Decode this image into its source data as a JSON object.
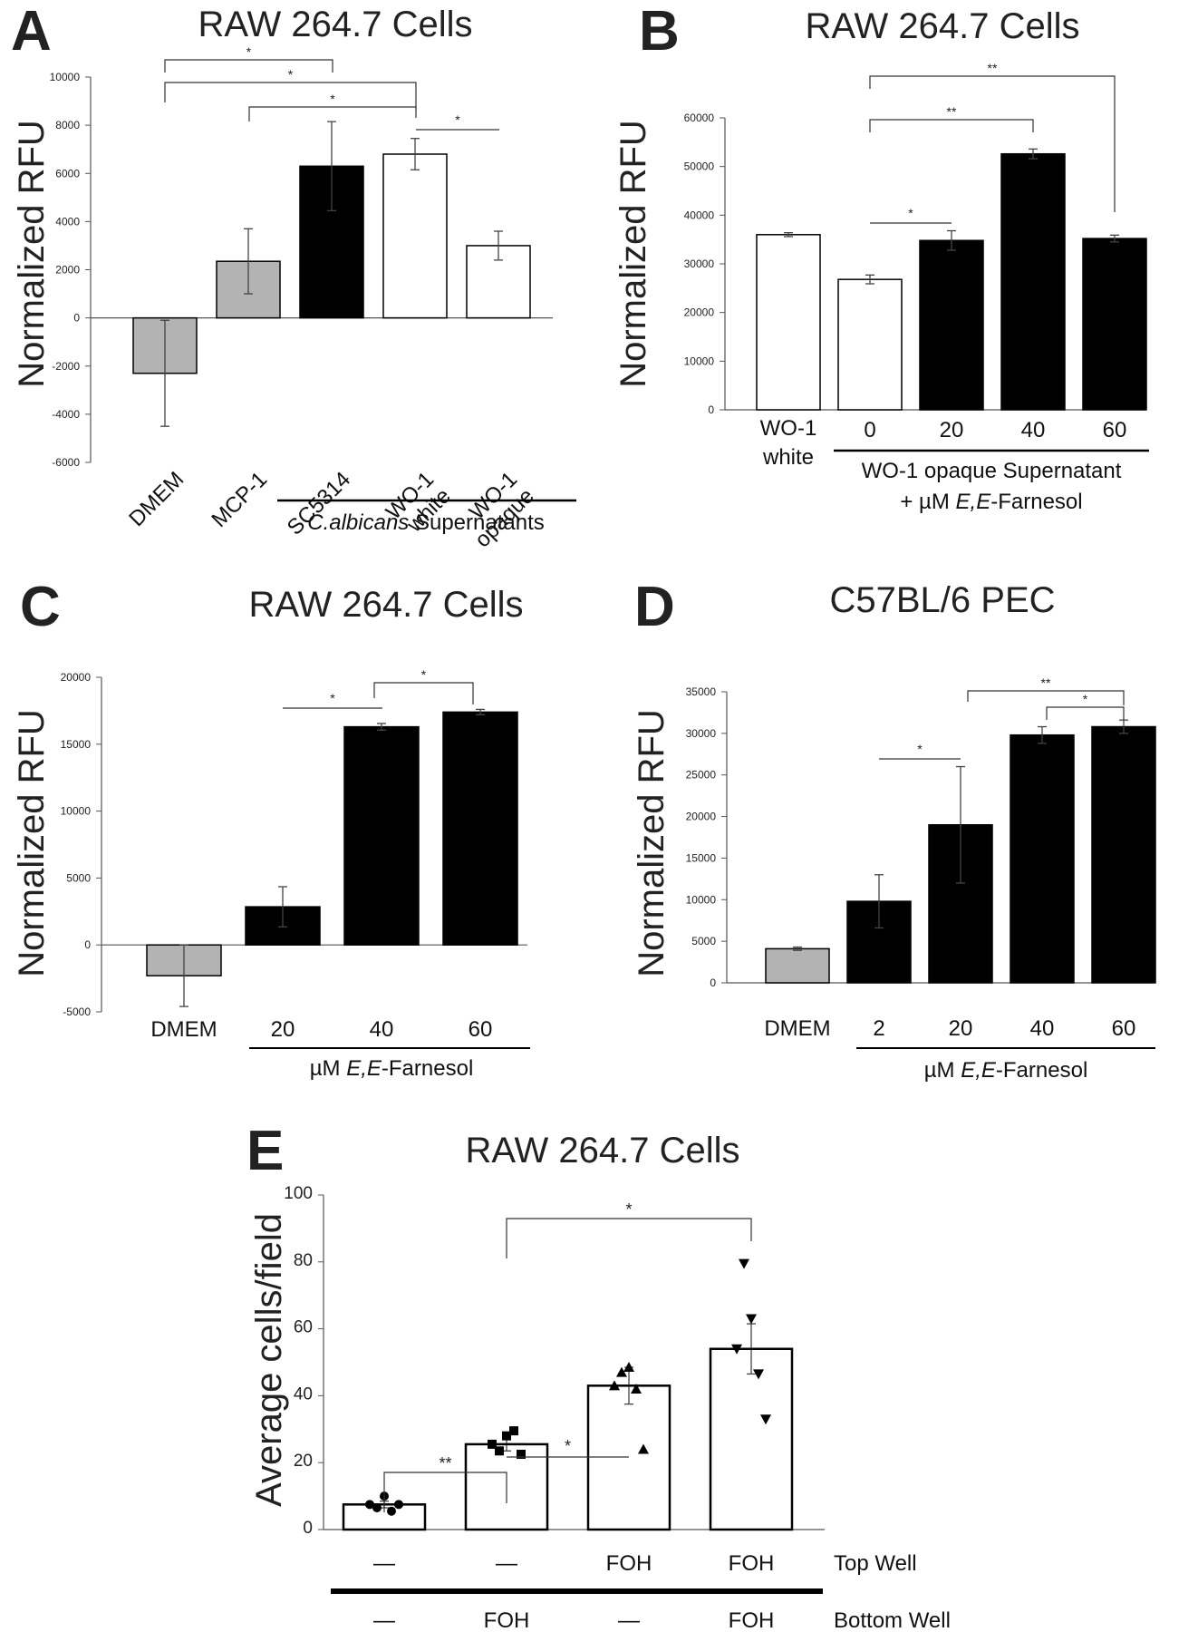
{
  "chart_data": [
    {
      "panel": "A",
      "type": "bar",
      "title": "RAW 264.7 Cells",
      "ylabel": "Normalized RFU",
      "ylim": [
        -6000,
        10000
      ],
      "yticks": [
        -6000,
        -4000,
        -2000,
        0,
        2000,
        4000,
        6000,
        8000,
        10000
      ],
      "categories": [
        "DMEM",
        "MCP-1",
        "SC5314",
        "WO-1\nwhite",
        "WO-1\nopaque"
      ],
      "values": [
        -2300,
        2350,
        6300,
        6800,
        3000
      ],
      "errors": [
        2200,
        1350,
        1850,
        650,
        600
      ],
      "colors": [
        "#b3b3b3",
        "#b3b3b3",
        "#000000",
        "#ffffff",
        "#ffffff"
      ],
      "group_label": "C.albicans Supernatants",
      "significance": [
        "*",
        "*",
        "*",
        "*"
      ]
    },
    {
      "panel": "B",
      "type": "bar",
      "title": "RAW 264.7 Cells",
      "ylabel": "Normalized RFU",
      "ylim": [
        0,
        60000
      ],
      "yticks": [
        0,
        10000,
        20000,
        30000,
        40000,
        50000,
        60000
      ],
      "categories": [
        "WO-1\nwhite",
        "0",
        "20",
        "40",
        "60"
      ],
      "values": [
        36000,
        26800,
        34800,
        52600,
        35200
      ],
      "errors": [
        400,
        900,
        2000,
        1000,
        700
      ],
      "colors": [
        "#ffffff",
        "#ffffff",
        "#000000",
        "#000000",
        "#000000"
      ],
      "group_label_1": "WO-1 opaque Supernatant",
      "group_label_2": "+ µM E,E-Farnesol",
      "significance": [
        "*",
        "**",
        "**"
      ]
    },
    {
      "panel": "C",
      "type": "bar",
      "title": "RAW 264.7 Cells",
      "ylabel": "Normalized RFU",
      "ylim": [
        -5000,
        20000
      ],
      "yticks": [
        -5000,
        0,
        5000,
        10000,
        15000,
        20000
      ],
      "categories": [
        "DMEM",
        "20",
        "40",
        "60"
      ],
      "values": [
        -2300,
        2850,
        16300,
        17400
      ],
      "errors": [
        2300,
        1500,
        250,
        200
      ],
      "colors": [
        "#b3b3b3",
        "#000000",
        "#000000",
        "#000000"
      ],
      "group_label": "µM E,E-Farnesol",
      "significance": [
        "*",
        "*"
      ]
    },
    {
      "panel": "D",
      "type": "bar",
      "title": "C57BL/6 PEC",
      "ylabel": "Normalized RFU",
      "ylim": [
        0,
        35000
      ],
      "yticks": [
        0,
        5000,
        10000,
        15000,
        20000,
        25000,
        30000,
        35000
      ],
      "categories": [
        "DMEM",
        "2",
        "20",
        "40",
        "60"
      ],
      "values": [
        4100,
        9800,
        19000,
        29800,
        30800
      ],
      "errors": [
        200,
        3200,
        7000,
        1000,
        800
      ],
      "colors": [
        "#b3b3b3",
        "#000000",
        "#000000",
        "#000000",
        "#000000"
      ],
      "group_label": "µM E,E-Farnesol",
      "significance": [
        "*",
        "**",
        "*"
      ]
    },
    {
      "panel": "E",
      "type": "bar",
      "title": "RAW 264.7 Cells",
      "ylabel": "Average cells/field",
      "ylim": [
        0,
        100
      ],
      "yticks": [
        0,
        20,
        40,
        60,
        80,
        100
      ],
      "values": [
        7.5,
        25.5,
        43,
        54
      ],
      "errors": [
        1,
        2,
        5.5,
        7.5
      ],
      "points": [
        [
          7.5,
          6.5,
          10,
          5.5,
          7.5
        ],
        [
          25.5,
          23.5,
          28,
          29.5,
          22.5
        ],
        [
          43,
          47,
          48.5,
          42,
          24
        ],
        [
          54,
          79.5,
          63,
          46.5,
          33
        ]
      ],
      "top_well": [
        "—",
        "—",
        "FOH",
        "FOH"
      ],
      "bottom_well": [
        "—",
        "FOH",
        "—",
        "FOH"
      ],
      "top_well_label": "Top Well",
      "bottom_well_label": "Bottom Well",
      "significance": [
        "**",
        "*",
        "*"
      ]
    }
  ]
}
